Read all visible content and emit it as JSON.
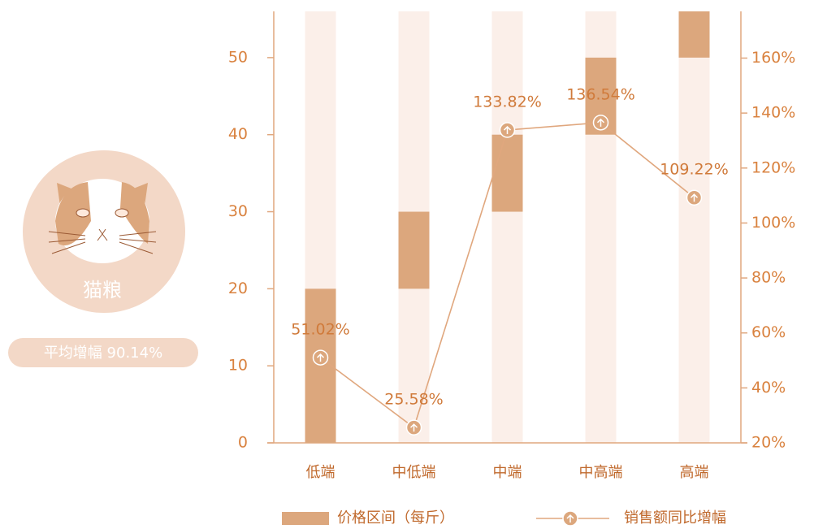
{
  "sidebar": {
    "label": "猫粮",
    "badge": "平均增幅 90.14%"
  },
  "chart_data": {
    "type": "range-bar-line",
    "categories": [
      "低端",
      "中低端",
      "中端",
      "中高端",
      "高端"
    ],
    "series": [
      {
        "name": "价格区间（每斤）",
        "type": "range-bar",
        "color": "#dca77d",
        "values": [
          [
            0,
            20
          ],
          [
            20,
            30
          ],
          [
            30,
            40
          ],
          [
            40,
            50
          ],
          [
            50,
            56
          ]
        ]
      },
      {
        "name": "销售额同比增幅",
        "type": "line",
        "axis": "y2",
        "color": "#e0a77e",
        "values": [
          51.02,
          25.58,
          133.82,
          136.54,
          109.22
        ],
        "value_labels": [
          "51.02%",
          "25.58%",
          "133.82%",
          "136.54%",
          "109.22%"
        ]
      }
    ],
    "ylim": [
      0,
      56
    ],
    "yticks": [
      0,
      10,
      20,
      30,
      40,
      50
    ],
    "y2lim": [
      20,
      177
    ],
    "y2ticks": [
      {
        "value": 20,
        "label": "20%"
      },
      {
        "value": 40,
        "label": "40%"
      },
      {
        "value": 60,
        "label": "60%"
      },
      {
        "value": 80,
        "label": "80%"
      },
      {
        "value": 100,
        "label": "100%"
      },
      {
        "value": 120,
        "label": "120%"
      },
      {
        "value": 140,
        "label": "140%"
      },
      {
        "value": 160,
        "label": "160%"
      }
    ],
    "background_bar_color": "#fbefe9"
  }
}
